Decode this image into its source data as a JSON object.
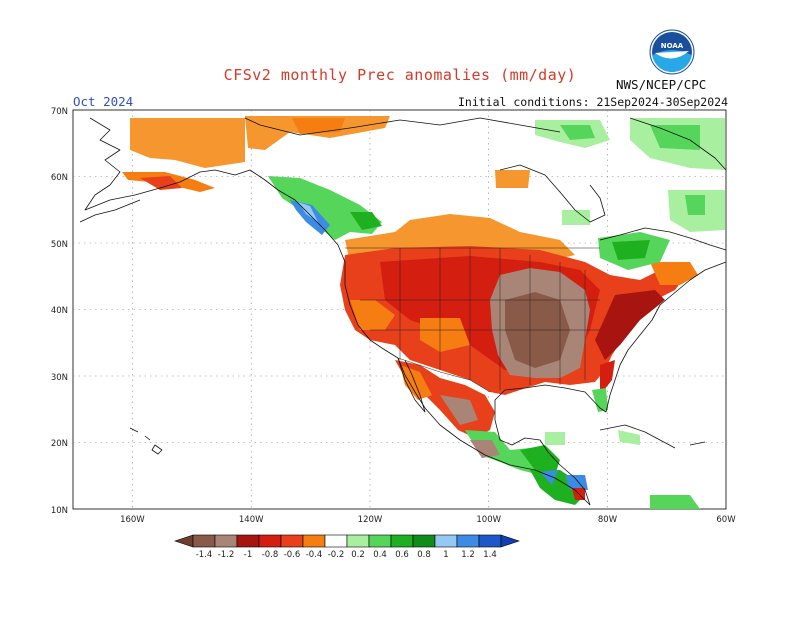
{
  "header": {
    "title": "CFSv2 monthly Prec anomalies (mm/day)",
    "month": "Oct 2024",
    "initial_conditions": "Initial conditions: 21Sep2024-30Sep2024",
    "agency": "NWS/NCEP/CPC",
    "logo_text": "NOAA"
  },
  "map": {
    "lon_range": [
      -170,
      -60
    ],
    "lat_range": [
      10,
      70
    ],
    "lat_labels": [
      "10N",
      "20N",
      "30N",
      "40N",
      "50N",
      "60N",
      "70N"
    ],
    "lon_labels": [
      "160W",
      "140W",
      "120W",
      "100W",
      "80W",
      "60W"
    ]
  },
  "colorbar": {
    "labels": [
      "-1.4",
      "-1.2",
      "-1",
      "-0.8",
      "-0.6",
      "-0.4",
      "-0.2",
      "0.2",
      "0.4",
      "0.6",
      "0.8",
      "1",
      "1.2",
      "1.4"
    ],
    "colors": [
      "#8a5a48",
      "#a88576",
      "#a81410",
      "#d41e10",
      "#e8401a",
      "#f57d12",
      "#ffffff",
      "#a8f0a0",
      "#55d65a",
      "#1fb01f",
      "#108c18",
      "#96c8f5",
      "#3c8ce6",
      "#1e58c8"
    ]
  }
}
